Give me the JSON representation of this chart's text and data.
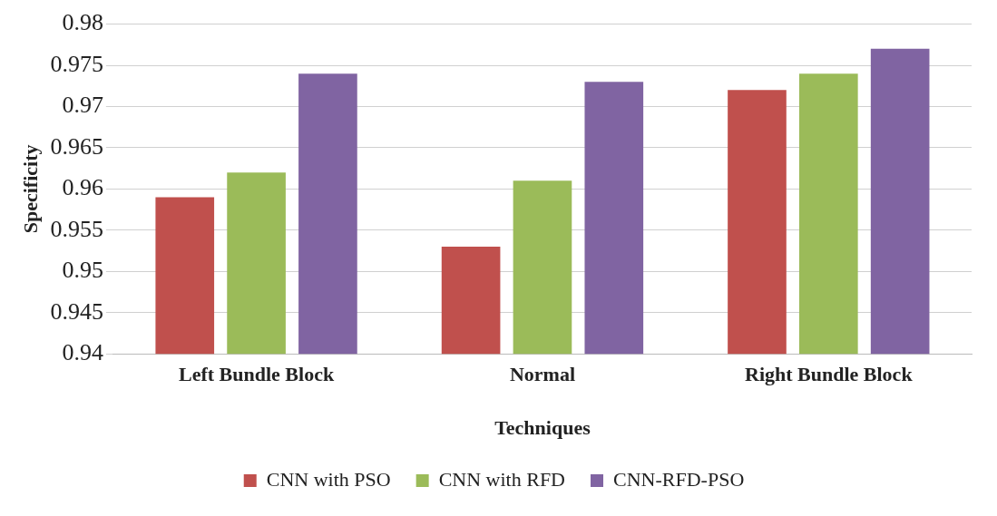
{
  "chart_data": {
    "type": "bar",
    "xlabel": "Techniques",
    "ylabel": "Specificity",
    "categories": [
      "Left Bundle Block",
      "Normal",
      "Right Bundle Block"
    ],
    "series": [
      {
        "name": "CNN with PSO",
        "color": "#c0504d",
        "values": [
          0.959,
          0.953,
          0.972
        ]
      },
      {
        "name": "CNN with RFD",
        "color": "#9bbb59",
        "values": [
          0.962,
          0.961,
          0.974
        ]
      },
      {
        "name": "CNN-RFD-PSO",
        "color": "#8064a2",
        "values": [
          0.974,
          0.973,
          0.977
        ]
      }
    ],
    "ylim": [
      0.94,
      0.98
    ],
    "yticks": [
      0.94,
      0.945,
      0.95,
      0.955,
      0.96,
      0.965,
      0.97,
      0.975,
      0.98
    ],
    "grid": "y",
    "legend": "bottom"
  }
}
